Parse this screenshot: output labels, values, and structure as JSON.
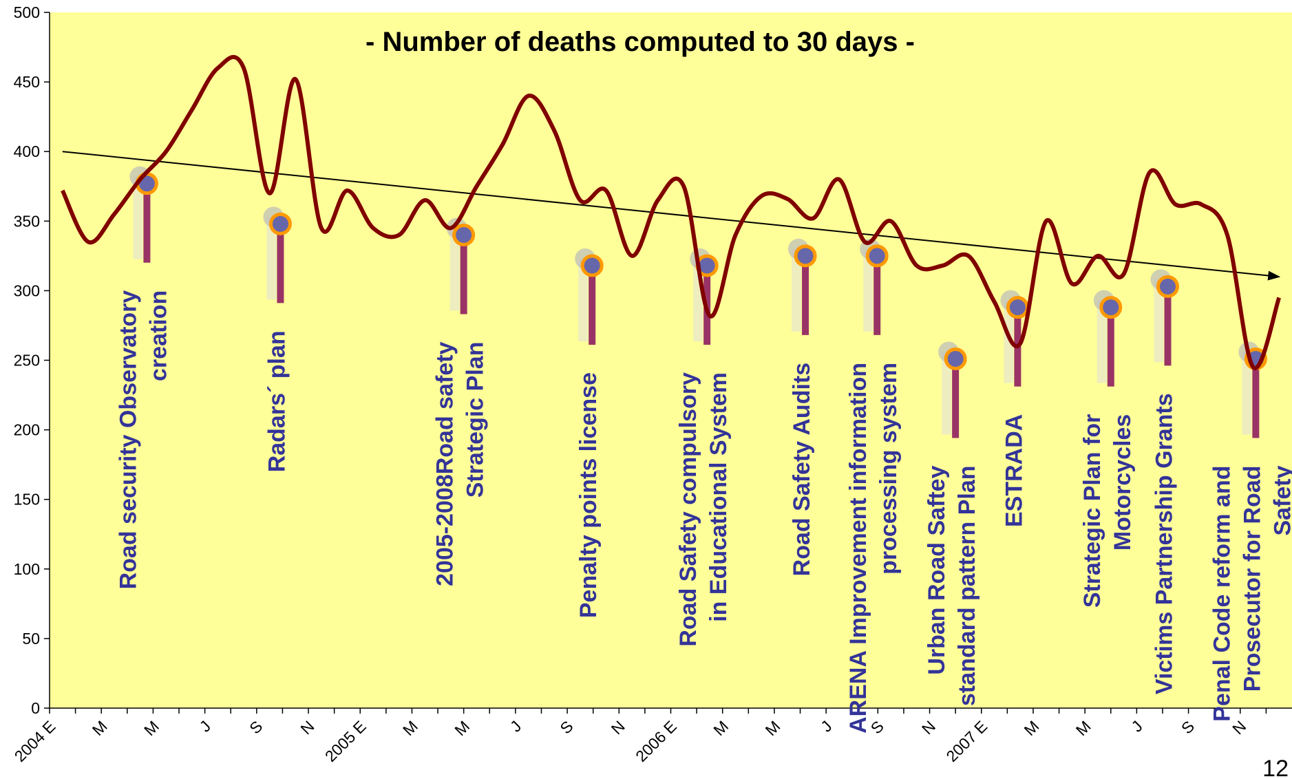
{
  "chart_data": {
    "type": "line",
    "title": "- Number of deaths computed to 30 days -",
    "categories": [
      "2004 E",
      null,
      "M",
      null,
      "M",
      null,
      "J",
      null,
      "S",
      null,
      "N",
      null,
      "2005 E",
      null,
      "M",
      null,
      "M",
      null,
      "J",
      null,
      "S",
      null,
      "N",
      null,
      "2006 E",
      null,
      "M",
      null,
      "M",
      null,
      "J",
      null,
      "S",
      null,
      "N",
      null,
      "2007 E",
      null,
      "M",
      null,
      "M",
      null,
      "J",
      null,
      "S",
      null,
      "N",
      null
    ],
    "series": [
      {
        "color": "#800000",
        "values": [
          372,
          335,
          355,
          380,
          400,
          430,
          460,
          460,
          370,
          452,
          345,
          372,
          345,
          340,
          365,
          345,
          375,
          405,
          440,
          415,
          365,
          372,
          325,
          365,
          375,
          282,
          340,
          368,
          366,
          352,
          380,
          335,
          350,
          318,
          318,
          325,
          292,
          262,
          350,
          305,
          325,
          312,
          385,
          362,
          362,
          340,
          245,
          295
        ]
      }
    ],
    "trend": {
      "x": [
        0,
        47
      ],
      "values": [
        400,
        310
      ],
      "color": "#000000"
    },
    "ylim": [
      0,
      500
    ],
    "yticks": [
      0,
      50,
      100,
      150,
      200,
      250,
      300,
      350,
      400,
      450,
      500
    ],
    "background": "#ffff99",
    "annotations": [
      {
        "lines": [
          "Road security Observatory",
          "creation"
        ],
        "x": 3.76,
        "y": 377
      },
      {
        "lines": [
          "Radars´ plan"
        ],
        "x": 8.92,
        "y": 348
      },
      {
        "lines": [
          "2005-2008Road safety",
          "Strategic Plan"
        ],
        "x": 16.0,
        "y": 340
      },
      {
        "lines": [
          "Penalty points license"
        ],
        "x": 20.96,
        "y": 318
      },
      {
        "lines": [
          "Road Safety compulsory",
          "in Educational System"
        ],
        "x": 25.4,
        "y": 318
      },
      {
        "lines": [
          "Road Safety Audits"
        ],
        "x": 29.2,
        "y": 325
      },
      {
        "lines": [
          "ARENA Improvement information",
          "processing system"
        ],
        "x": 31.97,
        "y": 325
      },
      {
        "lines": [
          "Urban Road Saftey",
          "standard pattern Plan"
        ],
        "x": 35.0,
        "y": 251
      },
      {
        "lines": [
          "ESTRADA"
        ],
        "x": 37.4,
        "y": 288
      },
      {
        "lines": [
          "Strategic Plan for",
          "Motorcycles"
        ],
        "x": 41.0,
        "y": 288
      },
      {
        "lines": [
          "Victims Partnership Grants"
        ],
        "x": 43.2,
        "y": 303
      },
      {
        "lines": [
          "Penal Code reform and",
          "Prosecutor for Road",
          "Safety"
        ],
        "x": 46.6,
        "y": 251
      }
    ],
    "page_number": "12"
  }
}
